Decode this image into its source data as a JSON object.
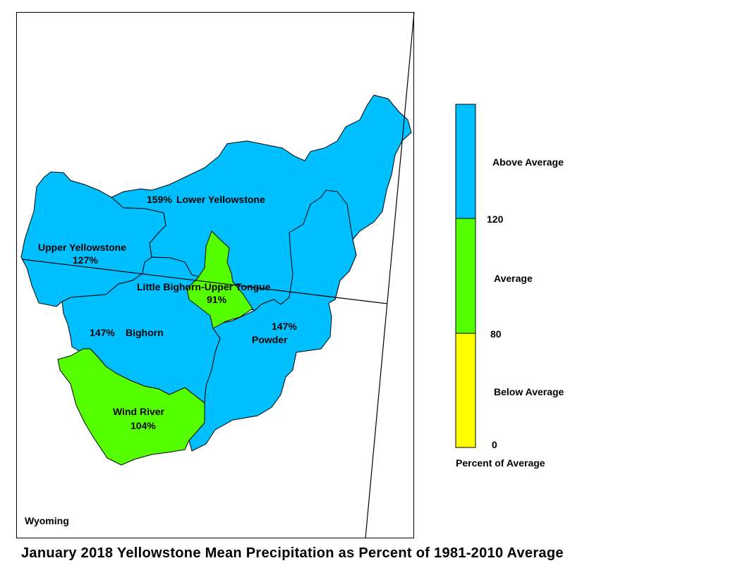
{
  "title": "January 2018 Yellowstone Mean Precipitation as Percent of 1981-2010 Average",
  "state_label": "Wyoming",
  "colors": {
    "above": "#00bfff",
    "average": "#55ff00",
    "below": "#ffff00",
    "outline": "#000000"
  },
  "basins": {
    "lower_yellowstone": {
      "name": "Lower Yellowstone",
      "percent": "159%",
      "category": "above"
    },
    "upper_yellowstone": {
      "name": "Upper Yellowstone",
      "percent": "127%",
      "category": "above"
    },
    "little_bighorn_upper_tongue": {
      "name": "Little Bighorn-Upper Tongue",
      "percent": "91%",
      "category": "average"
    },
    "bighorn": {
      "name": "Bighorn",
      "percent": "147%",
      "category": "above"
    },
    "powder": {
      "name": "Powder",
      "percent": "147%",
      "category": "above"
    },
    "wind_river": {
      "name": "Wind River",
      "percent": "104%",
      "category": "average"
    }
  },
  "legend": {
    "title": "Percent of Average",
    "categories": [
      "Above Average",
      "Average",
      "Below Average"
    ],
    "breaks": [
      "120",
      "80",
      "0"
    ]
  }
}
